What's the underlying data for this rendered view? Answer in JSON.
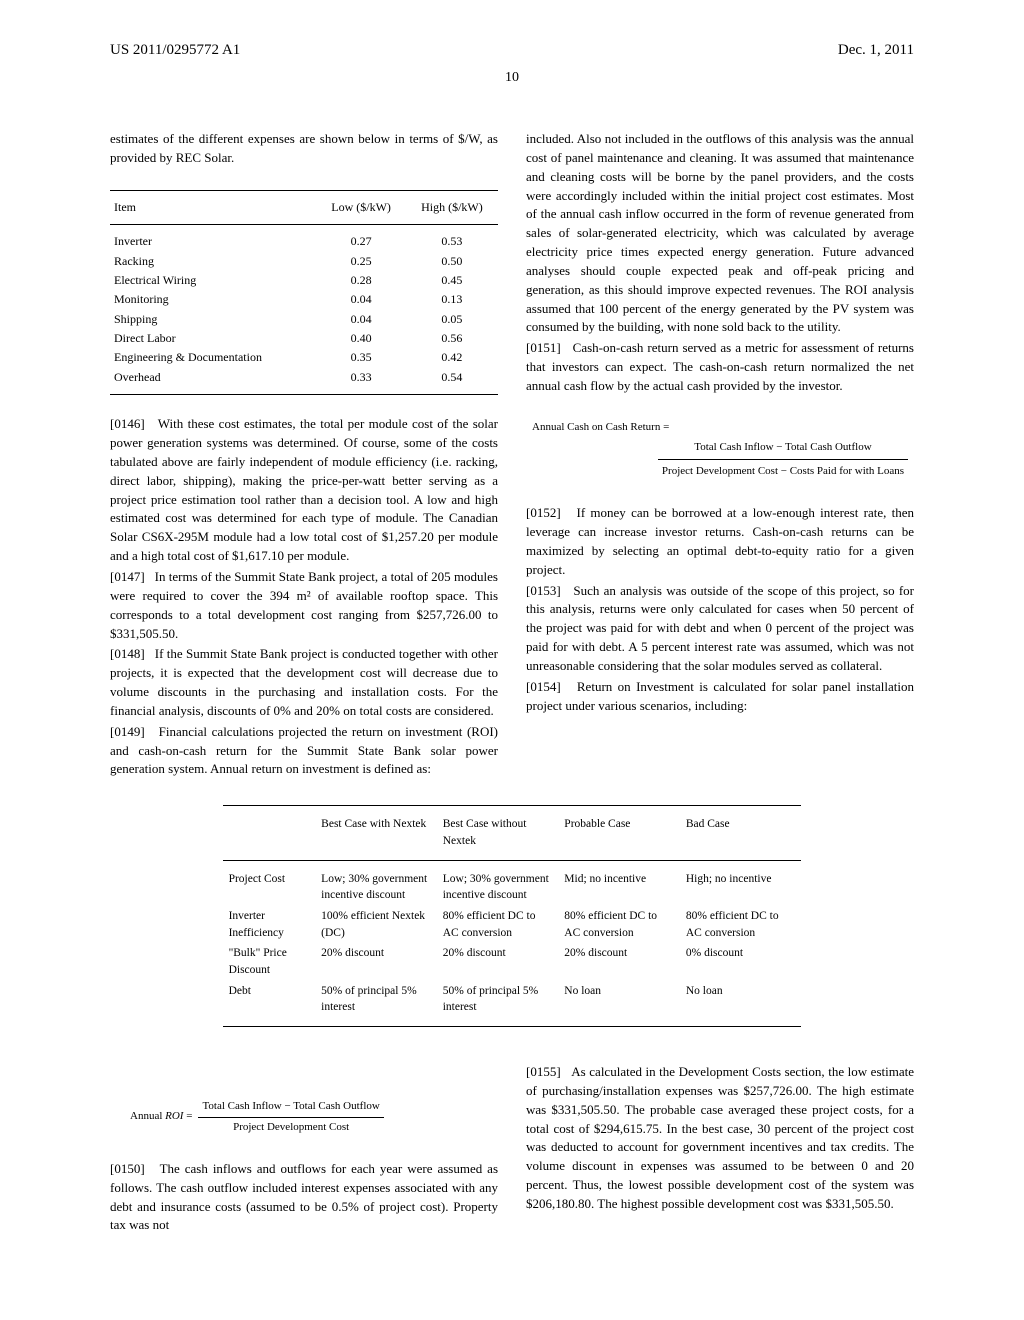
{
  "header": {
    "pub_number": "US 2011/0295772 A1",
    "pub_date": "Dec. 1, 2011",
    "page_number": "10"
  },
  "left_col": {
    "intro_line": "estimates of the different expenses are shown below in terms of $/W, as provided by REC Solar.",
    "cost_table": {
      "columns": [
        "Item",
        "Low ($/kW)",
        "High ($/kW)"
      ],
      "rows": [
        [
          "Inverter",
          "0.27",
          "0.53"
        ],
        [
          "Racking",
          "0.25",
          "0.50"
        ],
        [
          "Electrical Wiring",
          "0.28",
          "0.45"
        ],
        [
          "Monitoring",
          "0.04",
          "0.13"
        ],
        [
          "Shipping",
          "0.04",
          "0.05"
        ],
        [
          "Direct Labor",
          "0.40",
          "0.56"
        ],
        [
          "Engineering & Documentation",
          "0.35",
          "0.42"
        ],
        [
          "Overhead",
          "0.33",
          "0.54"
        ]
      ]
    },
    "p0146_num": "[0146]",
    "p0146": "With these cost estimates, the total per module cost of the solar power generation systems was determined. Of course, some of the costs tabulated above are fairly independent of module efficiency (i.e. racking, direct labor, shipping), making the price-per-watt better serving as a project price estimation tool rather than a decision tool. A low and high estimated cost was determined for each type of module. The Canadian Solar CS6X-295M module had a low total cost of $1,257.20 per module and a high total cost of $1,617.10 per module.",
    "p0147_num": "[0147]",
    "p0147": "In terms of the Summit State Bank project, a total of 205 modules were required to cover the 394 m² of available rooftop space. This corresponds to a total development cost ranging from $257,726.00 to $331,505.50.",
    "p0148_num": "[0148]",
    "p0148": "If the Summit State Bank project is conducted together with other projects, it is expected that the development cost will decrease due to volume discounts in the purchasing and installation costs. For the financial analysis, discounts of 0% and 20% on total costs are considered.",
    "p0149_num": "[0149]",
    "p0149": "Financial calculations projected the return on investment (ROI) and cash-on-cash return for the Summit State Bank solar power generation system. Annual return on investment is defined as:"
  },
  "right_col": {
    "p_cont": "included. Also not included in the outflows of this analysis was the annual cost of panel maintenance and cleaning. It was assumed that maintenance and cleaning costs will be borne by the panel providers, and the costs were accordingly included within the initial project cost estimates. Most of the annual cash inflow occurred in the form of revenue generated from sales of solar-generated electricity, which was calculated by average electricity price times expected energy generation. Future advanced analyses should couple expected peak and off-peak pricing and generation, as this should improve expected revenues. The ROI analysis assumed that 100 percent of the energy generated by the PV system was consumed by the building, with none sold back to the utility.",
    "p0151_num": "[0151]",
    "p0151": "Cash-on-cash return served as a metric for assessment of returns that investors can expect. The cash-on-cash return normalized the net annual cash flow by the actual cash provided by the investor.",
    "formula_coc": {
      "lhs": "Annual Cash on Cash Return =",
      "num": "Total Cash Inflow − Total Cash Outflow",
      "den": "Project Development Cost − Costs Paid for with Loans"
    },
    "p0152_num": "[0152]",
    "p0152": "If money can be borrowed at a low-enough interest rate, then leverage can increase investor returns. Cash-on-cash returns can be maximized by selecting an optimal debt-to-equity ratio for a given project.",
    "p0153_num": "[0153]",
    "p0153": "Such an analysis was outside of the scope of this project, so for this analysis, returns were only calculated for cases when 50 percent of the project was paid for with debt and when 0 percent of the project was paid for with debt. A 5 percent interest rate was assumed, which was not unreasonable considering that the solar modules served as collateral.",
    "p0154_num": "[0154]",
    "p0154": "Return on Investment is calculated for solar panel installation project under various scenarios, including:"
  },
  "scenario_table": {
    "columns": [
      "",
      "Best Case with Nextek",
      "Best Case without Nextek",
      "Probable Case",
      "Bad Case"
    ],
    "rows": [
      [
        "Project Cost",
        "Low; 30% government incentive discount",
        "Low; 30% government incentive discount",
        "Mid; no incentive",
        "High; no incentive"
      ],
      [
        "Inverter Inefficiency",
        "100% efficient Nextek (DC)",
        "80% efficient DC to AC conversion",
        "80% efficient DC to AC conversion",
        "80% efficient DC to AC conversion"
      ],
      [
        "\"Bulk\" Price Discount",
        "20% discount",
        "20% discount",
        "20% discount",
        "0% discount"
      ],
      [
        "Debt",
        "50% of principal 5% interest",
        "50% of principal 5% interest",
        "No loan",
        "No loan"
      ]
    ]
  },
  "bottom_left": {
    "formula_roi": {
      "lhs_pre": "Annual ",
      "lhs_italic": "ROI",
      "lhs_post": " = ",
      "num": "Total Cash Inflow − Total Cash Outflow",
      "den": "Project Development Cost"
    },
    "p0150_num": "[0150]",
    "p0150": "The cash inflows and outflows for each year were assumed as follows. The cash outflow included interest expenses associated with any debt and insurance costs (assumed to be 0.5% of project cost). Property tax was not"
  },
  "bottom_right": {
    "p0155_num": "[0155]",
    "p0155": "As calculated in the Development Costs section, the low estimate of purchasing/installation expenses was $257,726.00. The high estimate was $331,505.50. The probable case averaged these project costs, for a total cost of $294,615.75. In the best case, 30 percent of the project cost was deducted to account for government incentives and tax credits. The volume discount in expenses was assumed to be between 0 and 20 percent. Thus, the lowest possible development cost of the system was $206,180.80. The highest possible development cost was $331,505.50."
  }
}
